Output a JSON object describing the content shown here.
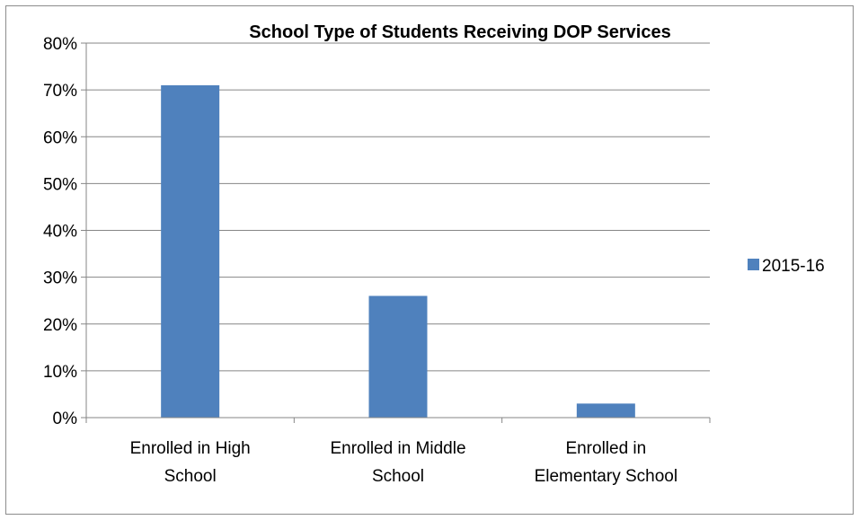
{
  "chart_data": {
    "type": "bar",
    "title": "School Type of Students Receiving DOP Services",
    "categories": [
      [
        "Enrolled in High",
        "School"
      ],
      [
        "Enrolled in Middle",
        "School"
      ],
      [
        "Enrolled in",
        "Elementary School"
      ]
    ],
    "series": [
      {
        "name": "2015-16",
        "values": [
          71,
          26,
          3
        ],
        "color": "#4f81bd"
      }
    ],
    "ylim": [
      0,
      80
    ],
    "yticks": [
      0,
      10,
      20,
      30,
      40,
      50,
      60,
      70,
      80
    ],
    "ytick_suffix": "%",
    "grid": true,
    "legend_position": "right"
  }
}
